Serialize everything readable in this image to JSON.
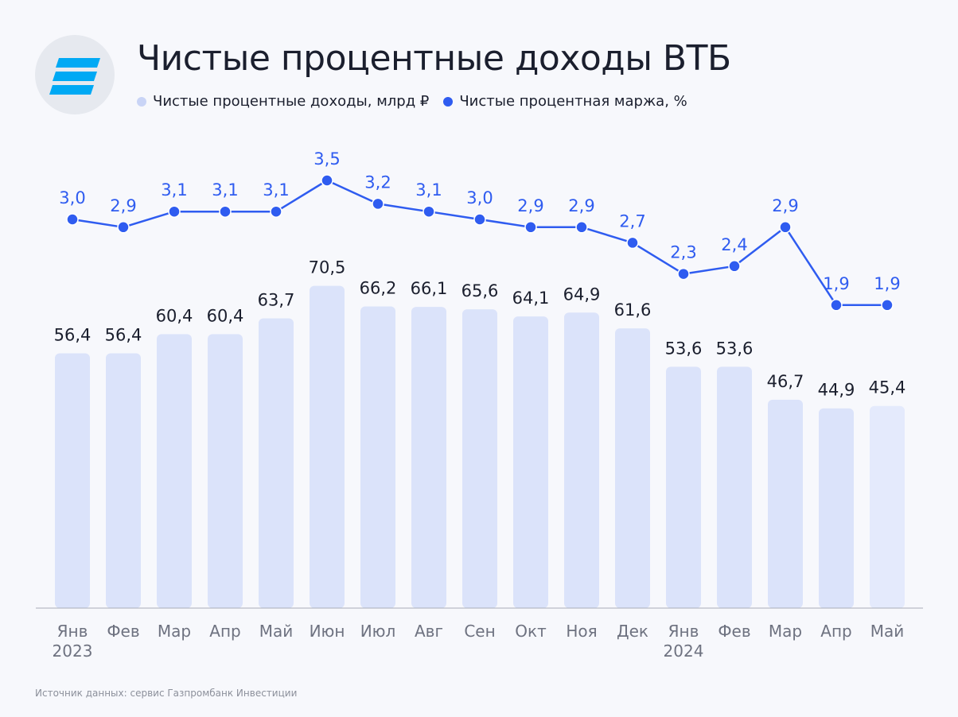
{
  "title": "Чистые процентные доходы ВТБ",
  "footer": "Источник данных: сервис Газпромбанк Инвестиции",
  "logo": "gazprombank-logo",
  "colors": {
    "bar": "#dbe3fa",
    "bar_last": "#e4eafc",
    "line": "#2f5cf0",
    "logo_stripes": "#00a9f4"
  },
  "chart_data": {
    "type": "bar+line",
    "categories": [
      "Янв\n2023",
      "Фев",
      "Мар",
      "Апр",
      "Май",
      "Июн",
      "Июл",
      "Авг",
      "Сен",
      "Окт",
      "Ноя",
      "Дек",
      "Янв\n2024",
      "Фев",
      "Мар",
      "Апр",
      "Май"
    ],
    "legend_placement": "top-left",
    "grid": false,
    "series": [
      {
        "name": "Чистые процентные доходы, млрд ₽",
        "type": "bar",
        "values": [
          56.4,
          56.4,
          60.4,
          60.4,
          63.7,
          70.5,
          66.2,
          66.1,
          65.6,
          64.1,
          64.9,
          61.6,
          53.6,
          53.6,
          46.7,
          44.9,
          45.4
        ],
        "labels": [
          "56,4",
          "56,4",
          "60,4",
          "60,4",
          "63,7",
          "70,5",
          "66,2",
          "66,1",
          "65,6",
          "64,1",
          "64,9",
          "61,6",
          "53,6",
          "53,6",
          "46,7",
          "44,9",
          "45,4"
        ]
      },
      {
        "name": "Чистые процентная маржа, %",
        "type": "line",
        "values": [
          3.0,
          2.9,
          3.1,
          3.1,
          3.1,
          3.5,
          3.2,
          3.1,
          3.0,
          2.9,
          2.9,
          2.7,
          2.3,
          2.4,
          2.9,
          1.9,
          1.9
        ],
        "labels": [
          "3,0",
          "2,9",
          "3,1",
          "3,1",
          "3,1",
          "3,5",
          "3,2",
          "3,1",
          "3,0",
          "2,9",
          "2,9",
          "2,7",
          "2,3",
          "2,4",
          "2,9",
          "1,9",
          "1,9"
        ]
      }
    ]
  }
}
